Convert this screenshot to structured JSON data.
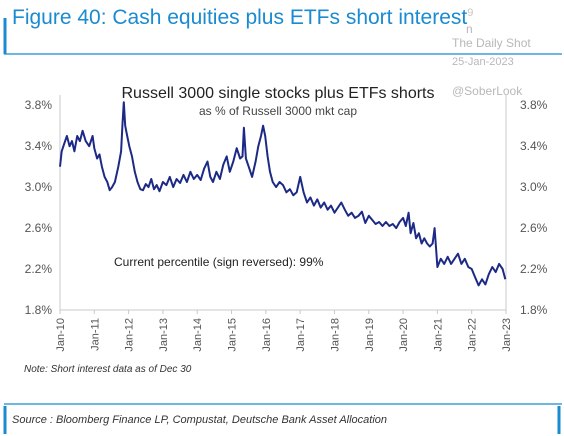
{
  "figure": {
    "title": "Figure 40: Cash equities plus ETFs short interest",
    "title_superscript": "9",
    "colors": {
      "title": "#1a8bd1",
      "frame": "#1a8bd1",
      "line": "#1c2a86"
    }
  },
  "watermarks": {
    "brand": "The Daily Shot",
    "date": "25-Jan-2023",
    "handle": "@SoberLook",
    "fragment": "n"
  },
  "note": "Note: Short interest data as of Dec 30",
  "source": "Source : Bloomberg Finance LP, Compustat, Deutsche Bank Asset Allocation",
  "chart_data": {
    "type": "line",
    "title": "Russell 3000 single stocks plus ETFs shorts",
    "subtitle": "as % of Russell 3000 mkt cap",
    "annotation": "Current percentile (sign reversed): 99%",
    "ylim": [
      1.8,
      3.9
    ],
    "y_ticks": [
      "1.8%",
      "2.2%",
      "2.6%",
      "3.0%",
      "3.4%",
      "3.8%"
    ],
    "y_tick_values": [
      1.8,
      2.2,
      2.6,
      3.0,
      3.4,
      3.8
    ],
    "x_ticks": [
      "Jan-10",
      "Jan-11",
      "Jan-12",
      "Jan-13",
      "Jan-14",
      "Jan-15",
      "Jan-16",
      "Jan-17",
      "Jan-18",
      "Jan-19",
      "Jan-20",
      "Jan-21",
      "Jan-22",
      "Jan-23"
    ],
    "xlim": [
      2010.0,
      2023.0
    ],
    "grid": false,
    "series": [
      {
        "points": [
          [
            2010.0,
            3.2
          ],
          [
            2010.05,
            3.35
          ],
          [
            2010.12,
            3.42
          ],
          [
            2010.2,
            3.5
          ],
          [
            2010.28,
            3.4
          ],
          [
            2010.35,
            3.45
          ],
          [
            2010.42,
            3.35
          ],
          [
            2010.5,
            3.5
          ],
          [
            2010.58,
            3.45
          ],
          [
            2010.66,
            3.55
          ],
          [
            2010.75,
            3.45
          ],
          [
            2010.85,
            3.4
          ],
          [
            2010.95,
            3.5
          ],
          [
            2011.0,
            3.38
          ],
          [
            2011.08,
            3.28
          ],
          [
            2011.15,
            3.32
          ],
          [
            2011.22,
            3.2
          ],
          [
            2011.3,
            3.1
          ],
          [
            2011.38,
            3.05
          ],
          [
            2011.45,
            2.97
          ],
          [
            2011.52,
            3.0
          ],
          [
            2011.6,
            3.05
          ],
          [
            2011.7,
            3.2
          ],
          [
            2011.78,
            3.35
          ],
          [
            2011.82,
            3.6
          ],
          [
            2011.86,
            3.83
          ],
          [
            2011.9,
            3.6
          ],
          [
            2011.96,
            3.5
          ],
          [
            2012.02,
            3.4
          ],
          [
            2012.1,
            3.3
          ],
          [
            2012.18,
            3.15
          ],
          [
            2012.26,
            3.05
          ],
          [
            2012.34,
            2.98
          ],
          [
            2012.42,
            2.97
          ],
          [
            2012.5,
            3.03
          ],
          [
            2012.58,
            3.0
          ],
          [
            2012.66,
            3.08
          ],
          [
            2012.74,
            2.98
          ],
          [
            2012.82,
            3.02
          ],
          [
            2012.9,
            2.96
          ],
          [
            2013.0,
            3.05
          ],
          [
            2013.1,
            3.02
          ],
          [
            2013.2,
            3.1
          ],
          [
            2013.3,
            3.0
          ],
          [
            2013.4,
            3.08
          ],
          [
            2013.5,
            3.04
          ],
          [
            2013.6,
            3.12
          ],
          [
            2013.7,
            3.05
          ],
          [
            2013.8,
            3.15
          ],
          [
            2013.9,
            3.08
          ],
          [
            2014.0,
            3.12
          ],
          [
            2014.1,
            3.07
          ],
          [
            2014.2,
            3.18
          ],
          [
            2014.3,
            3.25
          ],
          [
            2014.38,
            3.1
          ],
          [
            2014.46,
            3.05
          ],
          [
            2014.56,
            3.15
          ],
          [
            2014.66,
            3.08
          ],
          [
            2014.76,
            3.22
          ],
          [
            2014.86,
            3.3
          ],
          [
            2014.95,
            3.15
          ],
          [
            2015.05,
            3.25
          ],
          [
            2015.15,
            3.38
          ],
          [
            2015.25,
            3.28
          ],
          [
            2015.32,
            3.3
          ],
          [
            2015.36,
            3.58
          ],
          [
            2015.42,
            3.28
          ],
          [
            2015.5,
            3.2
          ],
          [
            2015.6,
            3.1
          ],
          [
            2015.7,
            3.25
          ],
          [
            2015.78,
            3.4
          ],
          [
            2015.86,
            3.5
          ],
          [
            2015.92,
            3.6
          ],
          [
            2015.98,
            3.5
          ],
          [
            2016.05,
            3.3
          ],
          [
            2016.12,
            3.15
          ],
          [
            2016.2,
            3.05
          ],
          [
            2016.3,
            3.0
          ],
          [
            2016.4,
            3.05
          ],
          [
            2016.5,
            3.02
          ],
          [
            2016.6,
            2.95
          ],
          [
            2016.7,
            2.98
          ],
          [
            2016.8,
            2.92
          ],
          [
            2016.9,
            2.95
          ],
          [
            2017.0,
            3.1
          ],
          [
            2017.1,
            2.95
          ],
          [
            2017.2,
            2.85
          ],
          [
            2017.3,
            2.9
          ],
          [
            2017.4,
            2.82
          ],
          [
            2017.5,
            2.88
          ],
          [
            2017.6,
            2.8
          ],
          [
            2017.7,
            2.85
          ],
          [
            2017.8,
            2.78
          ],
          [
            2017.9,
            2.82
          ],
          [
            2018.0,
            2.75
          ],
          [
            2018.1,
            2.8
          ],
          [
            2018.2,
            2.85
          ],
          [
            2018.3,
            2.78
          ],
          [
            2018.4,
            2.72
          ],
          [
            2018.5,
            2.75
          ],
          [
            2018.6,
            2.7
          ],
          [
            2018.7,
            2.72
          ],
          [
            2018.8,
            2.76
          ],
          [
            2018.9,
            2.65
          ],
          [
            2019.0,
            2.72
          ],
          [
            2019.1,
            2.68
          ],
          [
            2019.2,
            2.64
          ],
          [
            2019.3,
            2.66
          ],
          [
            2019.4,
            2.62
          ],
          [
            2019.5,
            2.66
          ],
          [
            2019.6,
            2.62
          ],
          [
            2019.7,
            2.64
          ],
          [
            2019.8,
            2.6
          ],
          [
            2019.9,
            2.66
          ],
          [
            2020.0,
            2.7
          ],
          [
            2020.08,
            2.62
          ],
          [
            2020.16,
            2.75
          ],
          [
            2020.22,
            2.55
          ],
          [
            2020.3,
            2.65
          ],
          [
            2020.38,
            2.5
          ],
          [
            2020.46,
            2.55
          ],
          [
            2020.54,
            2.45
          ],
          [
            2020.62,
            2.5
          ],
          [
            2020.7,
            2.45
          ],
          [
            2020.78,
            2.42
          ],
          [
            2020.86,
            2.45
          ],
          [
            2020.92,
            2.6
          ],
          [
            2021.0,
            2.22
          ],
          [
            2021.1,
            2.3
          ],
          [
            2021.2,
            2.25
          ],
          [
            2021.3,
            2.32
          ],
          [
            2021.4,
            2.25
          ],
          [
            2021.5,
            2.3
          ],
          [
            2021.6,
            2.35
          ],
          [
            2021.7,
            2.25
          ],
          [
            2021.8,
            2.3
          ],
          [
            2021.9,
            2.22
          ],
          [
            2022.0,
            2.2
          ],
          [
            2022.1,
            2.12
          ],
          [
            2022.2,
            2.04
          ],
          [
            2022.3,
            2.1
          ],
          [
            2022.4,
            2.05
          ],
          [
            2022.5,
            2.15
          ],
          [
            2022.6,
            2.22
          ],
          [
            2022.7,
            2.17
          ],
          [
            2022.8,
            2.25
          ],
          [
            2022.9,
            2.2
          ],
          [
            2022.98,
            2.1
          ]
        ]
      }
    ]
  }
}
